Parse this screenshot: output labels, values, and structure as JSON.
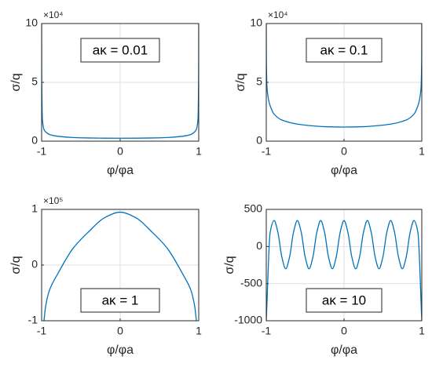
{
  "chart_data": [
    {
      "type": "line",
      "annotation": "aκ = 0.01",
      "xlabel": "φ/φa",
      "ylabel": "σ/q",
      "scale_label": "×10⁴",
      "x": [
        -1,
        -0.999,
        -0.99,
        -0.97,
        -0.95,
        -0.9,
        -0.8,
        -0.6,
        -0.4,
        -0.2,
        0,
        0.2,
        0.4,
        0.6,
        0.8,
        0.9,
        0.95,
        0.97,
        0.99,
        0.999,
        1
      ],
      "values": [
        10,
        5.6,
        1.8,
        1.0,
        0.8,
        0.57,
        0.42,
        0.31,
        0.27,
        0.255,
        0.25,
        0.255,
        0.27,
        0.31,
        0.42,
        0.57,
        0.8,
        1.0,
        1.8,
        5.6,
        10
      ],
      "color": "#0072bd",
      "xlim": [
        -1,
        1
      ],
      "ylim": [
        0,
        10
      ],
      "xticks": [
        -1,
        0,
        1
      ],
      "yticks": [
        0,
        5,
        10
      ],
      "grid": true
    },
    {
      "type": "line",
      "annotation": "aκ = 0.1",
      "xlabel": "φ/φa",
      "ylabel": "σ/q",
      "scale_label": "×10⁴",
      "x": [
        -1,
        -0.999,
        -0.99,
        -0.97,
        -0.95,
        -0.9,
        -0.8,
        -0.6,
        -0.4,
        -0.2,
        0,
        0.2,
        0.4,
        0.6,
        0.8,
        0.9,
        0.95,
        0.97,
        0.99,
        0.999,
        1
      ],
      "values": [
        10,
        7,
        4.5,
        3.5,
        3.0,
        2.3,
        1.8,
        1.45,
        1.3,
        1.22,
        1.2,
        1.22,
        1.3,
        1.45,
        1.8,
        2.3,
        3.0,
        3.5,
        4.5,
        7,
        10
      ],
      "color": "#0072bd",
      "xlim": [
        -1,
        1
      ],
      "ylim": [
        0,
        10
      ],
      "xticks": [
        -1,
        0,
        1
      ],
      "yticks": [
        0,
        5,
        10
      ],
      "grid": true
    },
    {
      "type": "line",
      "annotation": "aκ = 1",
      "xlabel": "φ/φa",
      "ylabel": "σ/q",
      "scale_label": "×10⁵",
      "x": [
        -0.97,
        -0.95,
        -0.9,
        -0.8,
        -0.6,
        -0.4,
        -0.2,
        0,
        0.2,
        0.4,
        0.6,
        0.8,
        0.9,
        0.95,
        0.97
      ],
      "values": [
        -1,
        -0.75,
        -0.45,
        -0.17,
        0.3,
        0.6,
        0.85,
        0.95,
        0.85,
        0.6,
        0.3,
        -0.17,
        -0.45,
        -0.75,
        -1
      ],
      "color": "#0072bd",
      "xlim": [
        -1,
        1
      ],
      "ylim": [
        -1,
        1
      ],
      "xticks": [
        -1,
        0,
        1
      ],
      "yticks": [
        -1,
        0,
        1
      ],
      "grid": true
    },
    {
      "type": "line",
      "annotation": "aκ = 10",
      "xlabel": "φ/φa",
      "ylabel": "σ/q",
      "x": [
        -1,
        -0.95,
        -0.9,
        -0.85,
        -0.8,
        -0.75,
        -0.7,
        -0.65,
        -0.6,
        -0.55,
        -0.5,
        -0.45,
        -0.4,
        -0.35,
        -0.3,
        -0.25,
        -0.2,
        -0.15,
        -0.1,
        -0.05,
        0,
        0.05,
        0.1,
        0.15,
        0.2,
        0.25,
        0.3,
        0.35,
        0.4,
        0.45,
        0.5,
        0.55,
        0.6,
        0.65,
        0.7,
        0.75,
        0.8,
        0.85,
        0.9,
        0.95,
        1
      ],
      "values": [
        -1000,
        190,
        350,
        190,
        -140,
        -300,
        -140,
        190,
        350,
        190,
        -140,
        -300,
        -140,
        190,
        350,
        190,
        -140,
        -300,
        -140,
        190,
        350,
        190,
        -140,
        -300,
        -140,
        190,
        350,
        190,
        -140,
        -300,
        -140,
        190,
        350,
        190,
        -140,
        -300,
        -140,
        190,
        350,
        190,
        -1000
      ],
      "color": "#0072bd",
      "xlim": [
        -1,
        1
      ],
      "ylim": [
        -1000,
        500
      ],
      "xticks": [
        -1,
        0,
        1
      ],
      "yticks": [
        -1000,
        -500,
        0,
        500
      ],
      "grid": true
    }
  ]
}
